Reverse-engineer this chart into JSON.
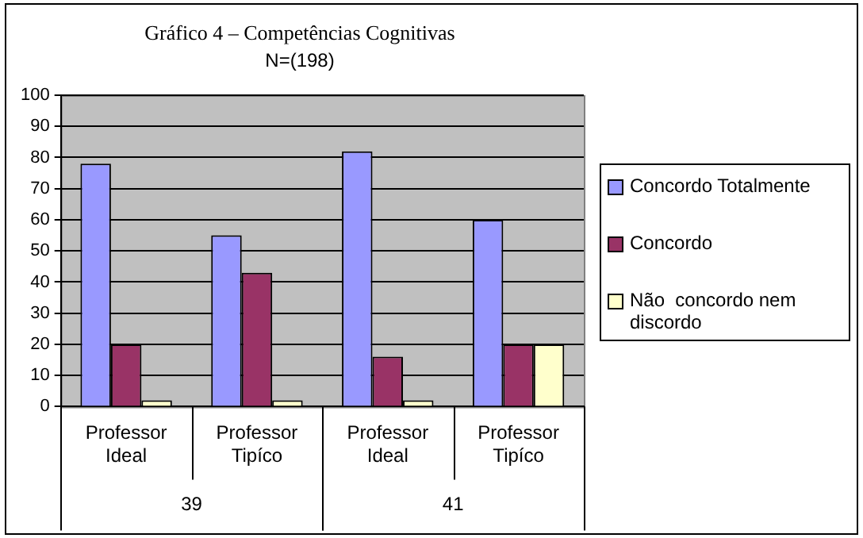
{
  "chart_data": {
    "type": "bar",
    "title": "Gráfico 4 – Competências Cognitivas",
    "subtitle": "N=(198)",
    "categories": [
      "Professor Ideal",
      "Professor Tipíco",
      "Professor Ideal",
      "Professor Tipíco"
    ],
    "series": [
      {
        "name": "Concordo Totalmente",
        "color": "#9999ff",
        "values": [
          78,
          55,
          82,
          60
        ]
      },
      {
        "name": "Concordo",
        "color": "#993366",
        "values": [
          20,
          43,
          16,
          20
        ]
      },
      {
        "name": "Não  concordo nem discordo",
        "color": "#ffffcc",
        "values": [
          2,
          2,
          2,
          20
        ]
      }
    ],
    "annotations": [
      "39",
      "41"
    ],
    "ylim": [
      0,
      100
    ],
    "yticks": [
      0,
      10,
      20,
      30,
      40,
      50,
      60,
      70,
      80,
      90,
      100
    ],
    "grid": "y",
    "legend": "right"
  }
}
